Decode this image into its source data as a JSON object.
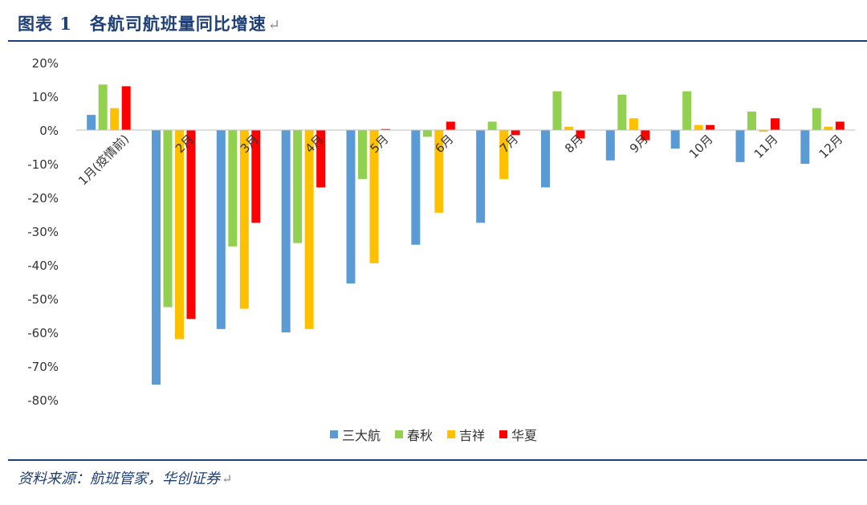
{
  "header": {
    "title": "图表 1　各航司航班量同比增速",
    "return_mark": "↵"
  },
  "footer": {
    "source": "资料来源：航班管家，华创证券",
    "return_mark": "↵"
  },
  "chart_data": {
    "type": "bar",
    "categories": [
      "1月(疫情前)",
      "2月",
      "3月",
      "4月",
      "5月",
      "6月",
      "7月",
      "8月",
      "9月",
      "10月",
      "11月",
      "12月"
    ],
    "series": [
      {
        "name": "三大航",
        "color": "#5b9bd5",
        "values": [
          4.5,
          -75.5,
          -59,
          -60,
          -45.5,
          -34,
          -27.5,
          -17,
          -9,
          -5.5,
          -9.5,
          -10
        ]
      },
      {
        "name": "春秋",
        "color": "#92d050",
        "values": [
          13.5,
          -52.5,
          -34.5,
          -33.5,
          -14.5,
          -2,
          2.5,
          11.5,
          10.5,
          11.5,
          5.5,
          6.5
        ]
      },
      {
        "name": "吉祥",
        "color": "#ffc000",
        "values": [
          6.5,
          -62,
          -53,
          -59,
          -39.5,
          -24.5,
          -14.5,
          1,
          3.5,
          1.5,
          -0.5,
          1
        ]
      },
      {
        "name": "华夏",
        "color": "#ff0000",
        "values": [
          13,
          -56,
          -27.5,
          -17,
          0.3,
          2.5,
          -1.5,
          -2.5,
          -3,
          1.5,
          3.5,
          2.5
        ]
      }
    ],
    "y_ticks": [
      "20%",
      "10%",
      "0%",
      "-10%",
      "-20%",
      "-30%",
      "-40%",
      "-50%",
      "-60%",
      "-70%",
      "-80%"
    ],
    "ylim": [
      -80,
      20
    ],
    "grid": false,
    "legend": "bottom"
  }
}
